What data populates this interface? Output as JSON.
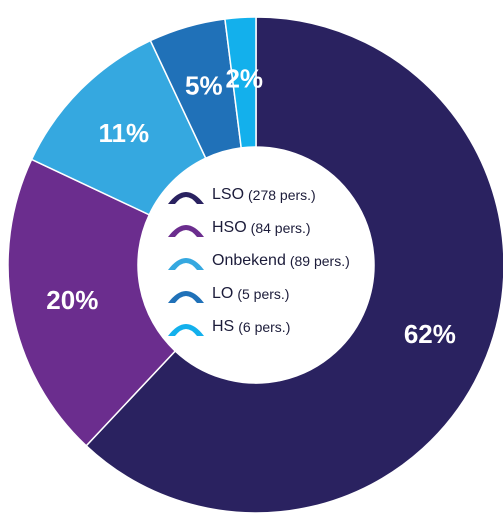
{
  "chart_data": {
    "type": "pie",
    "variant": "donut",
    "categories": [
      "LSO",
      "HSO",
      "Onbekend",
      "LO",
      "HS"
    ],
    "values": [
      62,
      20,
      11,
      5,
      2
    ],
    "value_labels": [
      "62%",
      "20%",
      "11%",
      "5%",
      "2%"
    ],
    "colors": [
      "#2a2260",
      "#6b2d8e",
      "#35a8e0",
      "#2071b8",
      "#13b0ec"
    ],
    "legend": [
      {
        "name": "LSO",
        "count": "(278 pers.)"
      },
      {
        "name": "HSO",
        "count": "(84 pers.)"
      },
      {
        "name": "Onbekend",
        "count": "(89 pers.)"
      },
      {
        "name": "LO",
        "count": "(5 pers.)"
      },
      {
        "name": "HS",
        "count": "(6 pers.)"
      }
    ],
    "legend_placement": "center"
  }
}
